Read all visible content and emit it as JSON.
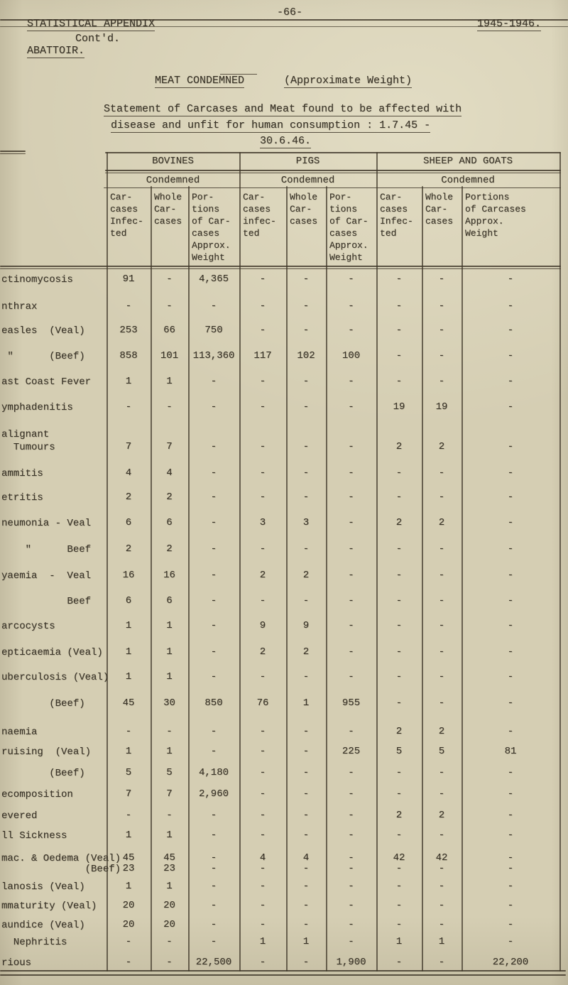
{
  "page": {
    "header": {
      "left": "STATISTICAL APPENDIX",
      "center": "-66-",
      "right": "1945-1946."
    },
    "section": {
      "title": "ABATTOIR.",
      "suffix": "Cont'd."
    },
    "doc_title": {
      "main": "MEAT CONDEMNED",
      "paren": "(Approximate Weight)"
    },
    "statement": {
      "line1": "Statement of Carcases and Meat found to be affected with",
      "line2": "disease and unfit for human consumption : 1.7.45 -",
      "line3": "30.6.46."
    }
  },
  "table": {
    "groups": [
      {
        "name": "BOVINES",
        "condemned": "Condemned"
      },
      {
        "name": "PIGS",
        "condemned": "Condemned"
      },
      {
        "name": "SHEEP AND GOATS",
        "condemned": "Condemned"
      }
    ],
    "columns": [
      {
        "group": "BOVINES",
        "lines": [
          "Car-",
          "cases",
          "Infec-",
          "ted"
        ]
      },
      {
        "group": "BOVINES",
        "lines": [
          "Whole",
          "Car-",
          "cases"
        ]
      },
      {
        "group": "BOVINES",
        "lines": [
          "Por-",
          "tions",
          "of Car-",
          "cases",
          "Approx.",
          "Weight"
        ]
      },
      {
        "group": "PIGS",
        "lines": [
          "Car-",
          "cases",
          "infec-",
          "ted"
        ]
      },
      {
        "group": "PIGS",
        "lines": [
          "Whole",
          "Car-",
          "cases"
        ]
      },
      {
        "group": "PIGS",
        "lines": [
          "Por-",
          "tions",
          "of Car-",
          "cases",
          "Approx.",
          "Weight"
        ]
      },
      {
        "group": "SHEEP AND GOATS",
        "lines": [
          "Car-",
          "cases",
          "Infec-",
          "ted"
        ]
      },
      {
        "group": "SHEEP AND GOATS",
        "lines": [
          "Whole",
          "Car-",
          "cases"
        ]
      },
      {
        "group": "SHEEP AND GOATS",
        "lines": [
          "Portions",
          "of Carcases",
          "Approx.",
          "Weight"
        ]
      }
    ],
    "rows": [
      {
        "label": [
          "ctinomycosis"
        ],
        "values": [
          "91",
          "-",
          "4,365",
          "-",
          "-",
          "-",
          "-",
          "-",
          "-"
        ]
      },
      {
        "label": [
          "nthrax"
        ],
        "values": [
          "-",
          "-",
          "-",
          "-",
          "-",
          "-",
          "-",
          "-",
          "-"
        ]
      },
      {
        "label": [
          "easles  (Veal)"
        ],
        "values": [
          "253",
          "66",
          "750",
          "-",
          "-",
          "-",
          "-",
          "-",
          "-"
        ]
      },
      {
        "label": [
          " \"      (Beef)"
        ],
        "values": [
          "858",
          "101",
          "113,360",
          "117",
          "102",
          "100",
          "-",
          "-",
          "-"
        ]
      },
      {
        "label": [
          "ast Coast Fever"
        ],
        "values": [
          "1",
          "1",
          "-",
          "-",
          "-",
          "-",
          "-",
          "-",
          "-"
        ]
      },
      {
        "label": [
          "ymphadenitis"
        ],
        "values": [
          "-",
          "-",
          "-",
          "-",
          "-",
          "-",
          "19",
          "19",
          "-"
        ]
      },
      {
        "label": [
          "alignant",
          "  Tumours"
        ],
        "values": [
          "7",
          "7",
          "-",
          "-",
          "-",
          "-",
          "2",
          "2",
          "-"
        ]
      },
      {
        "label": [
          "ammitis"
        ],
        "values": [
          "4",
          "4",
          "-",
          "-",
          "-",
          "-",
          "-",
          "-",
          "-"
        ]
      },
      {
        "label": [
          "etritis"
        ],
        "values": [
          "2",
          "2",
          "-",
          "-",
          "-",
          "-",
          "-",
          "-",
          "-"
        ]
      },
      {
        "label": [
          "neumonia - Veal"
        ],
        "values": [
          "6",
          "6",
          "-",
          "3",
          "3",
          "-",
          "2",
          "2",
          "-"
        ]
      },
      {
        "label": [
          "    \"      Beef"
        ],
        "values": [
          "2",
          "2",
          "-",
          "-",
          "-",
          "-",
          "-",
          "-",
          "-"
        ]
      },
      {
        "label": [
          "yaemia  -  Veal"
        ],
        "values": [
          "16",
          "16",
          "-",
          "2",
          "2",
          "-",
          "-",
          "-",
          "-"
        ]
      },
      {
        "label": [
          "           Beef"
        ],
        "values": [
          "6",
          "6",
          "-",
          "-",
          "-",
          "-",
          "-",
          "-",
          "-"
        ]
      },
      {
        "label": [
          "arcocysts"
        ],
        "values": [
          "1",
          "1",
          "-",
          "9",
          "9",
          "-",
          "-",
          "-",
          "-"
        ]
      },
      {
        "label": [
          "epticaemia (Veal)"
        ],
        "values": [
          "1",
          "1",
          "-",
          "2",
          "2",
          "-",
          "-",
          "-",
          "-"
        ]
      },
      {
        "label": [
          "uberculosis (Veal)"
        ],
        "values": [
          "1",
          "1",
          "-",
          "-",
          "-",
          "-",
          "-",
          "-",
          "-"
        ]
      },
      {
        "label": [
          "        (Beef)"
        ],
        "values": [
          "45",
          "30",
          "850",
          "76",
          "1",
          "955",
          "-",
          "-",
          "-"
        ]
      },
      {
        "label": [
          "naemia"
        ],
        "values": [
          "-",
          "-",
          "-",
          "-",
          "-",
          "-",
          "2",
          "2",
          "-"
        ]
      },
      {
        "label": [
          "ruising  (Veal)"
        ],
        "values": [
          "1",
          "1",
          "-",
          "-",
          "-",
          "225",
          "5",
          "5",
          "81"
        ]
      },
      {
        "label": [
          "        (Beef)"
        ],
        "values": [
          "5",
          "5",
          "4,180",
          "-",
          "-",
          "-",
          "-",
          "-",
          "-"
        ]
      },
      {
        "label": [
          "ecomposition"
        ],
        "values": [
          "7",
          "7",
          "2,960",
          "-",
          "-",
          "-",
          "-",
          "-",
          "-"
        ]
      },
      {
        "label": [
          "evered"
        ],
        "values": [
          "-",
          "-",
          "-",
          "-",
          "-",
          "-",
          "2",
          "2",
          "-"
        ]
      },
      {
        "label": [
          "ll Sickness"
        ],
        "values": [
          "1",
          "1",
          "-",
          "-",
          "-",
          "-",
          "-",
          "-",
          "-"
        ]
      },
      {
        "label": [
          "mac. & Oedema (Veal)"
        ],
        "values": [
          "45",
          "45",
          "-",
          "4",
          "4",
          "-",
          "42",
          "42",
          "-"
        ]
      },
      {
        "label": [
          "              (Beef)"
        ],
        "values": [
          "23",
          "23",
          "-",
          "-",
          "-",
          "-",
          "-",
          "-",
          "-"
        ]
      },
      {
        "label": [
          "lanosis (Veal)"
        ],
        "values": [
          "1",
          "1",
          "-",
          "-",
          "-",
          "-",
          "-",
          "-",
          "-"
        ]
      },
      {
        "label": [
          "mmaturity (Veal)"
        ],
        "values": [
          "20",
          "20",
          "-",
          "-",
          "-",
          "-",
          "-",
          "-",
          "-"
        ]
      },
      {
        "label": [
          "aundice (Veal)"
        ],
        "values": [
          "20",
          "20",
          "-",
          "-",
          "-",
          "-",
          "-",
          "-",
          "-"
        ]
      },
      {
        "label": [
          "  Nephritis"
        ],
        "values": [
          "-",
          "-",
          "-",
          "1",
          "1",
          "-",
          "1",
          "1",
          "-"
        ]
      },
      {
        "label": [
          "rious"
        ],
        "values": [
          "-",
          "-",
          "22,500",
          "-",
          "-",
          "1,900",
          "-",
          "-",
          "22,200"
        ]
      }
    ]
  }
}
